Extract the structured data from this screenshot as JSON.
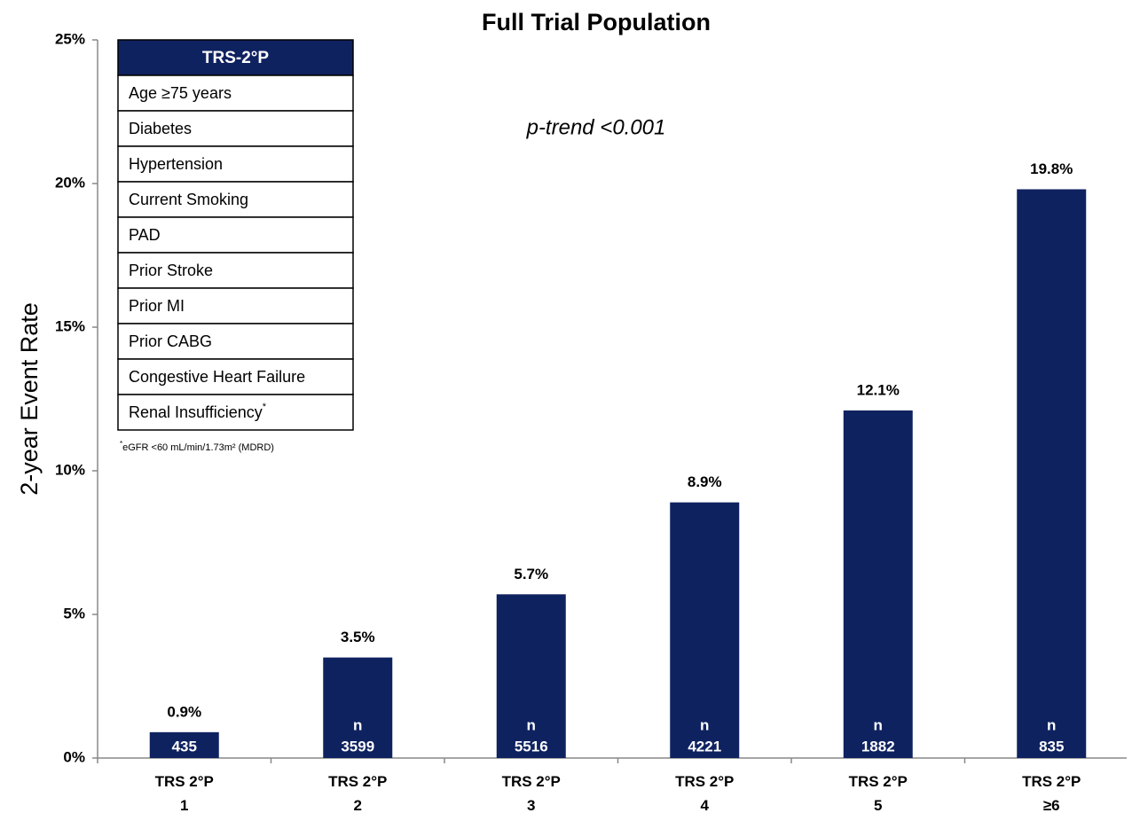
{
  "chart_data": {
    "type": "bar",
    "title": "Full Trial Population",
    "y_label": "2-year Event Rate",
    "annotation": "p-trend <0.001",
    "categories": [
      [
        "TRS 2°P",
        "1"
      ],
      [
        "TRS 2°P",
        "2"
      ],
      [
        "TRS 2°P",
        "3"
      ],
      [
        "TRS 2°P",
        "4"
      ],
      [
        "TRS 2°P",
        "5"
      ],
      [
        "TRS 2°P",
        "≥6"
      ]
    ],
    "values": [
      0.9,
      3.5,
      5.7,
      8.9,
      12.1,
      19.8
    ],
    "value_labels": [
      "0.9%",
      "3.5%",
      "5.7%",
      "8.9%",
      "12.1%",
      "19.8%"
    ],
    "n_label": "n",
    "n_values": [
      435,
      3599,
      5516,
      4221,
      1882,
      835
    ],
    "color": "#0f2260",
    "ylim": [
      0,
      25
    ],
    "yticks": [
      {
        "value": 0,
        "label": "0%"
      },
      {
        "value": 5,
        "label": "5%"
      },
      {
        "value": 10,
        "label": "10%"
      },
      {
        "value": 15,
        "label": "15%"
      },
      {
        "value": 20,
        "label": "20%"
      },
      {
        "value": 25,
        "label": "25%"
      }
    ],
    "grid": false
  },
  "table": {
    "header": "TRS-2°P",
    "rows": [
      "Age ≥75 years",
      "Diabetes",
      "Hypertension",
      "Current Smoking",
      "PAD",
      "Prior Stroke",
      "Prior MI",
      "Prior CABG",
      "Congestive Heart Failure",
      "Renal Insufficiency"
    ],
    "footnote_mark": "*",
    "footnote": "eGFR <60 mL/min/1.73m² (MDRD)"
  }
}
